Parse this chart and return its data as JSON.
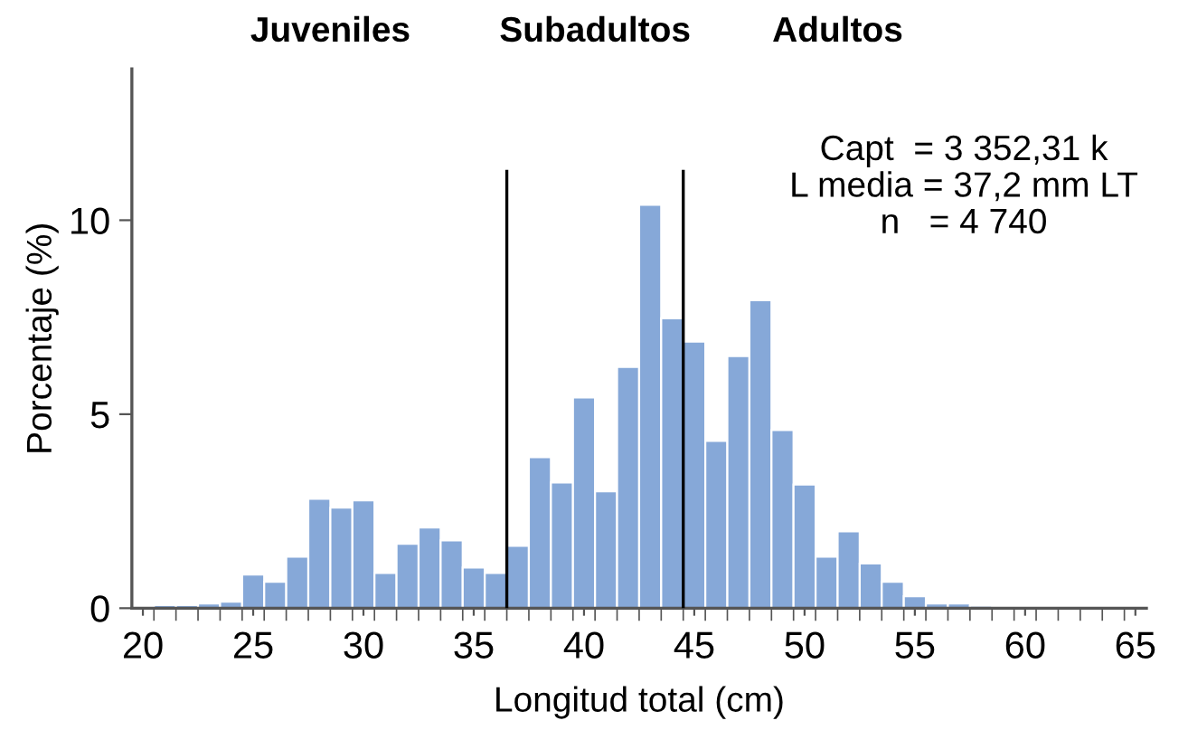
{
  "chart_data": {
    "type": "histogram",
    "xlabel": "Longitud total (cm)",
    "ylabel": "Porcentaje (%)",
    "bins": [
      20.5,
      21.5,
      22.5,
      23.5,
      24.5,
      25.5,
      26.5,
      27.5,
      28.5,
      29.5,
      30.5,
      31.5,
      32.5,
      33.5,
      34.5,
      35.5,
      36.5,
      37.5,
      38.5,
      39.5,
      40.5,
      41.5,
      42.5,
      43.5,
      44.5,
      45.5,
      46.5,
      47.5,
      48.5,
      49.5,
      50.5,
      51.5,
      52.5,
      53.5,
      54.5,
      55.5,
      56.5,
      57.5,
      58.5
    ],
    "values": [
      0.08,
      0.08,
      0.12,
      0.17,
      0.87,
      0.68,
      1.33,
      2.82,
      2.59,
      2.78,
      0.91,
      1.66,
      2.08,
      1.75,
      1.05,
      0.91,
      1.61,
      3.89,
      3.24,
      5.43,
      3.01,
      6.22,
      10.4,
      7.47,
      6.87,
      4.31,
      6.5,
      7.94,
      4.59,
      3.19,
      1.33,
      1.98,
      1.15,
      0.68,
      0.31,
      0.12,
      0.12,
      0.06
    ],
    "color": "#86a8d8",
    "xlim": [
      19.5,
      65.5
    ],
    "xticks": [
      20,
      25,
      30,
      35,
      40,
      45,
      50,
      55,
      60,
      65,
      {
        "value": 20.5,
        "label": null
      },
      {
        "value": 21.5,
        "label": null
      },
      {
        "value": 22.5,
        "label": null
      },
      {
        "value": 23.5,
        "label": null
      },
      {
        "value": 24.5,
        "label": null
      },
      {
        "value": 25.5,
        "label": null
      },
      {
        "value": 26.5,
        "label": null
      },
      {
        "value": 27.5,
        "label": null
      },
      {
        "value": 28.5,
        "label": null
      },
      {
        "value": 29.5,
        "label": null
      },
      {
        "value": 30.5,
        "label": null
      },
      {
        "value": 31.5,
        "label": null
      },
      {
        "value": 32.5,
        "label": null
      },
      {
        "value": 33.5,
        "label": null
      },
      {
        "value": 34.5,
        "label": null
      },
      {
        "value": 35.5,
        "label": null
      },
      {
        "value": 36.5,
        "label": null
      },
      {
        "value": 37.5,
        "label": null
      },
      {
        "value": 38.5,
        "label": null
      },
      {
        "value": 39.5,
        "label": null
      },
      {
        "value": 40.5,
        "label": null
      },
      {
        "value": 41.5,
        "label": null
      },
      {
        "value": 42.5,
        "label": null
      },
      {
        "value": 43.5,
        "label": null
      },
      {
        "value": 44.5,
        "label": null
      },
      {
        "value": 45.5,
        "label": null
      },
      {
        "value": 46.5,
        "label": null
      },
      {
        "value": 47.5,
        "label": null
      },
      {
        "value": 48.5,
        "label": null
      },
      {
        "value": 49.5,
        "label": null
      },
      {
        "value": 50.5,
        "label": null
      },
      {
        "value": 51.5,
        "label": null
      },
      {
        "value": 52.5,
        "label": null
      },
      {
        "value": 53.5,
        "label": null
      },
      {
        "value": 54.5,
        "label": null
      },
      {
        "value": 55.5,
        "label": null
      },
      {
        "value": 56.5,
        "label": null
      },
      {
        "value": 57.5,
        "label": null
      },
      {
        "value": 58.5,
        "label": null
      },
      {
        "value": 59.5,
        "label": null
      },
      {
        "value": 60.5,
        "label": null
      },
      {
        "value": 61.5,
        "label": null
      },
      {
        "value": 62.5,
        "label": null
      },
      {
        "value": 63.5,
        "label": null
      },
      {
        "value": 64.5,
        "label": null
      }
    ],
    "ylim": [
      0,
      13.9
    ],
    "yticks": [
      0,
      5,
      10
    ],
    "ref_lines": [
      {
        "axis": "x",
        "value": 36.5,
        "color": "#000000"
      },
      {
        "axis": "x",
        "value": 44.5,
        "color": "#000000"
      }
    ],
    "annotations": [
      "Juveniles",
      "Subadultos",
      "Adultos",
      "Capt  = 3 352,31 k\nL media = 37,2 mm LT\nn   = 4 740"
    ],
    "grid": false,
    "legend": false
  }
}
